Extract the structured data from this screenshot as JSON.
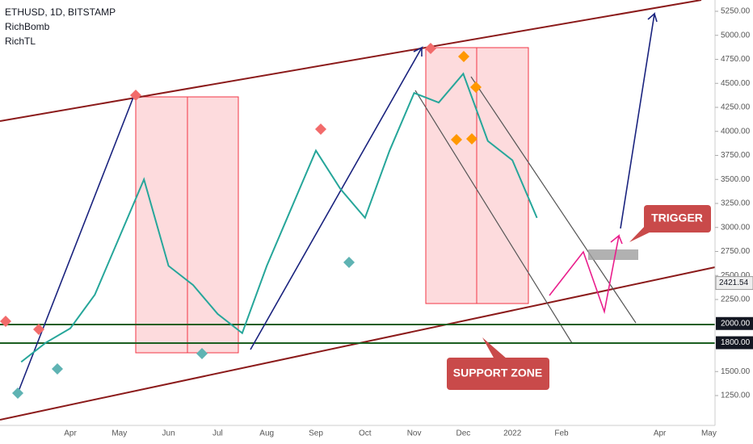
{
  "header": {
    "symbol": "ETHUSD, 1D, BITSTAMP",
    "indicators": [
      "RichBomb",
      "RichTL"
    ]
  },
  "chart_data": {
    "type": "line",
    "color": "#26a69a",
    "categories": [
      null,
      null,
      "Apr",
      null,
      "May",
      null,
      "Jun",
      null,
      "Jul",
      null,
      "Aug",
      null,
      "Sep",
      null,
      "Oct",
      null,
      "Nov",
      null,
      "Dec",
      null,
      "2022",
      null,
      "Feb",
      null,
      null,
      null,
      "Apr",
      null,
      "May"
    ],
    "values": [
      1600,
      1800,
      1950,
      2300,
      2900,
      3500,
      2600,
      2400,
      2100,
      1900,
      2600,
      3200,
      3800,
      3400,
      3100,
      3800,
      4400,
      4300,
      4600,
      3900,
      3700,
      3100,
      null,
      null,
      null,
      null,
      null,
      null,
      null
    ],
    "ylim": [
      1100,
      5350
    ],
    "yticks": [
      {
        "value": 5250,
        "label": "5250.00"
      },
      {
        "value": 5000,
        "label": "5000.00"
      },
      {
        "value": 4750,
        "label": "4750.00"
      },
      {
        "value": 4500,
        "label": "4500.00"
      },
      {
        "value": 4250,
        "label": "4250.00"
      },
      {
        "value": 4000,
        "label": "4000.00"
      },
      {
        "value": 3750,
        "label": "3750.00"
      },
      {
        "value": 3500,
        "label": "3500.00"
      },
      {
        "value": 3250,
        "label": "3250.00"
      },
      {
        "value": 3000,
        "label": "3000.00"
      },
      {
        "value": 2750,
        "label": "2750.00"
      },
      {
        "value": 2500,
        "label": "2500.00"
      },
      {
        "value": 2250,
        "label": "2250.00"
      },
      {
        "value": 1500,
        "label": "1500.00"
      },
      {
        "value": 1250,
        "label": "1250.00"
      }
    ],
    "levels": [
      {
        "value": 2000,
        "label": "2000.00"
      },
      {
        "value": 1800,
        "label": "1800.00"
      }
    ],
    "last_price": {
      "value": 2421.54,
      "label": "2421.54"
    },
    "annotations": [
      "TRIGGER",
      "SUPPORT ZONE"
    ]
  }
}
